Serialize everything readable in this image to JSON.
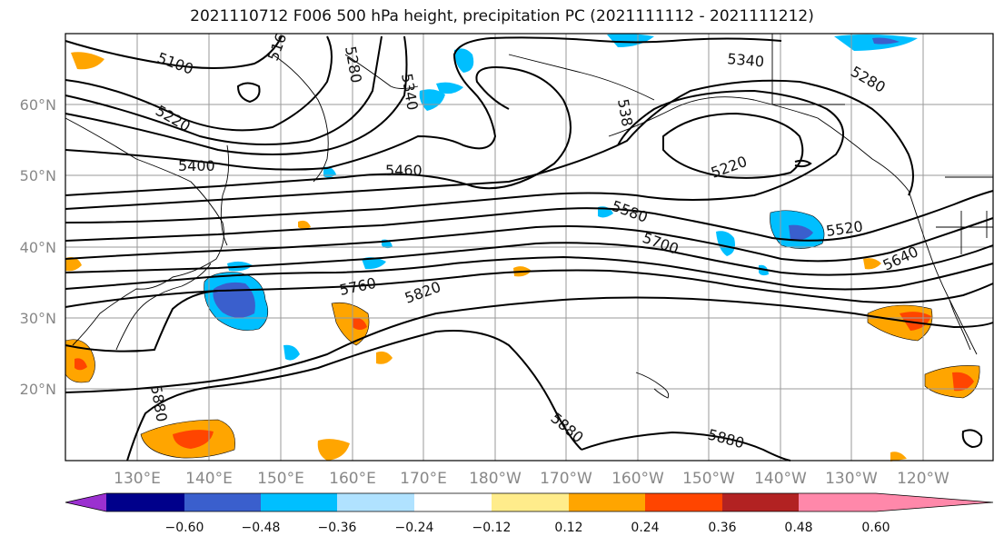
{
  "title": "2021110712 F006 500 hPa height, precipitation PC (2021111112 - 2021111212)",
  "lat_labels": [
    "60°N",
    "50°N",
    "40°N",
    "30°N",
    "20°N"
  ],
  "lon_labels": [
    "130°E",
    "140°E",
    "150°E",
    "160°E",
    "170°E",
    "180°W",
    "170°W",
    "160°W",
    "150°W",
    "140°W",
    "130°W",
    "120°W"
  ],
  "contour_labels": {
    "c5100": "5100",
    "c5160": "516",
    "c5280a": "5280",
    "c5340a": "5340",
    "c5220a": "5220",
    "c5400": "5400",
    "c5460": "5460",
    "c5380": "538",
    "c5340b": "5340",
    "c5280b": "5280",
    "c5220b": "5220",
    "c5580": "5580",
    "c5520": "5520",
    "c5700": "5700",
    "c5640": "5640",
    "c5760": "5760",
    "c5820": "5820",
    "c5880a": "5880",
    "c5880b": "5880",
    "c5880c": "5880"
  },
  "colorbar": {
    "ticks": [
      "−0.60",
      "−0.48",
      "−0.36",
      "−0.24",
      "−0.12",
      "0.12",
      "0.24",
      "0.36",
      "0.48",
      "0.60"
    ],
    "colors": [
      "#9b30d0",
      "#00008b",
      "#3a5fcd",
      "#00bfff",
      "#b0e2ff",
      "#ffffff",
      "#ffec8b",
      "#ffa500",
      "#ff4500",
      "#b22222",
      "#ff88aa"
    ]
  }
}
